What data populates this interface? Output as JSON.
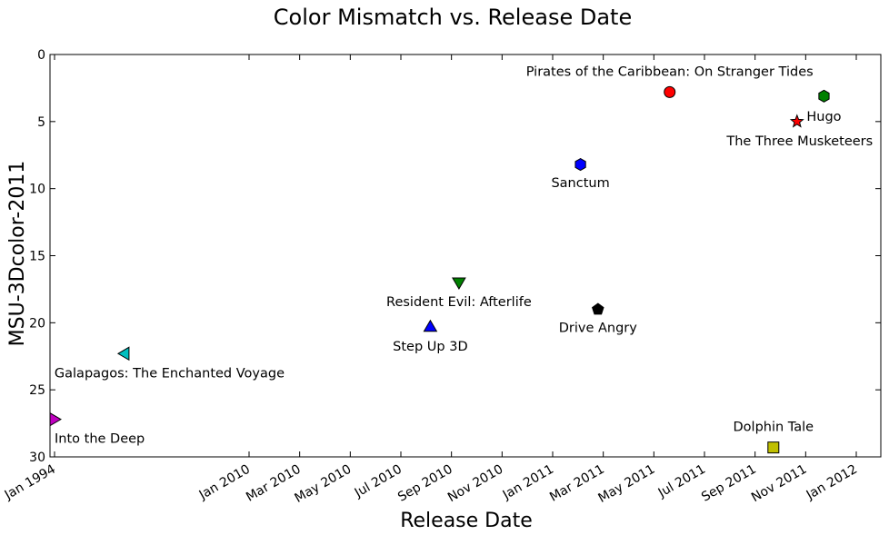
{
  "chart_data": {
    "type": "scatter",
    "title": "Color Mismatch vs. Release Date",
    "xlabel": "Release Date",
    "ylabel": "MSU-3Dcolor-2011",
    "ylim": [
      0,
      30
    ],
    "y_inverted": true,
    "y_ticks": [
      "0",
      "5",
      "10",
      "15",
      "20",
      "25",
      "30"
    ],
    "x_ticks": [
      "Jan 1994",
      "Jan 2010",
      "Mar 2010",
      "May 2010",
      "Jul 2010",
      "Sep 2010",
      "Nov 2010",
      "Jan 2011",
      "Mar 2011",
      "May 2011",
      "Jul 2011",
      "Sep 2011",
      "Nov 2011",
      "Jan 2012"
    ],
    "grid": false,
    "legend": "none",
    "points": [
      {
        "label": "Into the Deep",
        "date": "1994-01",
        "y": 27.2,
        "marker": "triangle-right",
        "color": "#bf00bf"
      },
      {
        "label": "Galapagos: The Enchanted Voyage",
        "date": "1999-10",
        "y": 22.3,
        "marker": "triangle-left",
        "color": "#00bfbf"
      },
      {
        "label": "Step Up 3D",
        "date": "2010-08-06",
        "y": 20.3,
        "marker": "triangle-up",
        "color": "#0000ff"
      },
      {
        "label": "Resident Evil: Afterlife",
        "date": "2010-09-10",
        "y": 17.0,
        "marker": "triangle-down",
        "color": "#008000"
      },
      {
        "label": "Sanctum",
        "date": "2011-02-04",
        "y": 8.2,
        "marker": "hexagon",
        "color": "#0000ff"
      },
      {
        "label": "Drive Angry",
        "date": "2011-02-25",
        "y": 19.0,
        "marker": "pentagon",
        "color": "#000000"
      },
      {
        "label": "Pirates of the Caribbean: On Stranger Tides",
        "date": "2011-05-20",
        "y": 2.8,
        "marker": "circle",
        "color": "#ff0000"
      },
      {
        "label": "Dolphin Tale",
        "date": "2011-09-23",
        "y": 29.3,
        "marker": "square",
        "color": "#bfbf00"
      },
      {
        "label": "The Three Musketeers",
        "date": "2011-10-21",
        "y": 5.0,
        "marker": "star",
        "color": "#ff0000"
      },
      {
        "label": "Hugo",
        "date": "2011-11-23",
        "y": 3.1,
        "marker": "hexagon",
        "color": "#008000"
      }
    ]
  }
}
